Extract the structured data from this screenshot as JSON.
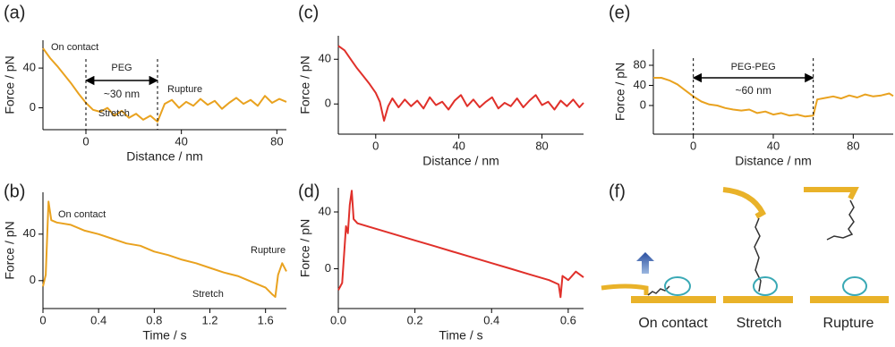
{
  "chart_data": [
    {
      "type": "line",
      "panel_label": "(a)",
      "x_label": "Distance / nm",
      "y_label": "Force / pN",
      "color": "#e9a21f",
      "xlim": [
        -18,
        84
      ],
      "ylim": [
        -22,
        68
      ],
      "xticks": [
        0,
        40,
        80
      ],
      "yticks": [
        0,
        40
      ],
      "x": [
        -18,
        -15,
        -12,
        -9,
        -6,
        -3,
        0,
        3,
        6,
        9,
        12,
        15,
        18,
        21,
        24,
        27,
        30,
        33,
        36,
        39,
        42,
        45,
        48,
        51,
        54,
        57,
        60,
        63,
        66,
        69,
        72,
        75,
        78,
        81,
        84
      ],
      "values": [
        60,
        50,
        42,
        33,
        24,
        14,
        5,
        -2,
        -4,
        0,
        -8,
        -3,
        -10,
        -6,
        -12,
        -8,
        -14,
        4,
        8,
        0,
        6,
        2,
        9,
        3,
        7,
        -1,
        5,
        10,
        4,
        8,
        2,
        12,
        5,
        9,
        6
      ],
      "annotations": [
        "On contact",
        "Rupture",
        "Stretch"
      ],
      "span": {
        "start": 0,
        "end": 30,
        "label": "PEG",
        "length_label": "~30 nm"
      }
    },
    {
      "type": "line",
      "panel_label": "(b)",
      "x_label": "Time / s",
      "y_label": "Force / pN",
      "color": "#e9a21f",
      "xlim": [
        0,
        1.75
      ],
      "ylim": [
        -24,
        76
      ],
      "xticks": [
        0,
        0.4,
        0.8,
        1.2,
        1.6
      ],
      "yticks": [
        0,
        40
      ],
      "x": [
        0,
        0.02,
        0.04,
        0.06,
        0.1,
        0.2,
        0.3,
        0.4,
        0.5,
        0.6,
        0.7,
        0.8,
        0.9,
        1.0,
        1.1,
        1.2,
        1.3,
        1.4,
        1.5,
        1.6,
        1.65,
        1.67,
        1.69,
        1.72,
        1.75
      ],
      "values": [
        -5,
        5,
        68,
        52,
        50,
        48,
        43,
        40,
        36,
        32,
        30,
        25,
        22,
        18,
        15,
        11,
        7,
        4,
        -1,
        -6,
        -12,
        -14,
        5,
        15,
        8
      ],
      "annotations": [
        "On contact",
        "Rupture",
        "Stretch"
      ]
    },
    {
      "type": "line",
      "panel_label": "(c)",
      "x_label": "Distance / nm",
      "y_label": "Force / pN",
      "color": "#e0302a",
      "xlim": [
        -18,
        100
      ],
      "ylim": [
        -27,
        61
      ],
      "xticks": [
        0,
        40,
        80
      ],
      "yticks": [
        0,
        40
      ],
      "x": [
        -18,
        -15,
        -12,
        -9,
        -6,
        -3,
        0,
        2,
        4,
        6,
        8,
        11,
        14,
        17,
        20,
        23,
        26,
        29,
        32,
        35,
        38,
        41,
        44,
        47,
        50,
        53,
        56,
        59,
        62,
        65,
        68,
        71,
        74,
        77,
        80,
        83,
        86,
        89,
        92,
        95,
        98,
        100
      ],
      "values": [
        52,
        48,
        40,
        32,
        25,
        18,
        10,
        2,
        -15,
        -2,
        5,
        -3,
        4,
        -2,
        3,
        -4,
        6,
        -1,
        2,
        -5,
        3,
        8,
        -2,
        4,
        -3,
        2,
        6,
        -4,
        1,
        -2,
        5,
        -3,
        3,
        8,
        -1,
        2,
        -5,
        3,
        -2,
        4,
        -3,
        1
      ]
    },
    {
      "type": "line",
      "panel_label": "(d)",
      "x_label": "Time / s",
      "y_label": "Force / pN",
      "color": "#e0302a",
      "xlim": [
        0,
        0.64
      ],
      "ylim": [
        -28,
        57
      ],
      "xticks": [
        {
          "value": 0,
          "label": "0.0"
        },
        0.2,
        0.4,
        0.6
      ],
      "yticks": [
        0,
        40
      ],
      "x": [
        0,
        0.01,
        0.02,
        0.025,
        0.03,
        0.035,
        0.04,
        0.05,
        0.1,
        0.15,
        0.2,
        0.25,
        0.3,
        0.35,
        0.4,
        0.45,
        0.5,
        0.55,
        0.575,
        0.58,
        0.585,
        0.6,
        0.62,
        0.64
      ],
      "values": [
        -15,
        -10,
        30,
        25,
        45,
        55,
        35,
        32,
        28,
        24,
        20,
        16,
        12,
        8,
        4,
        0,
        -4,
        -8,
        -11,
        -20,
        -5,
        -8,
        -2,
        -6
      ]
    },
    {
      "type": "line",
      "panel_label": "(e)",
      "x_label": "Distance / nm",
      "y_label": "Force / pN",
      "color": "#e9a21f",
      "xlim": [
        -20,
        100
      ],
      "ylim": [
        -57,
        112
      ],
      "xticks": [
        0,
        40,
        80
      ],
      "yticks": [
        0,
        40,
        80
      ],
      "x": [
        -20,
        -16,
        -12,
        -8,
        -4,
        0,
        4,
        8,
        12,
        16,
        20,
        24,
        28,
        32,
        36,
        40,
        44,
        48,
        52,
        56,
        60,
        62,
        66,
        70,
        74,
        78,
        82,
        86,
        90,
        94,
        98,
        100
      ],
      "values": [
        55,
        55,
        50,
        42,
        30,
        18,
        8,
        2,
        0,
        -5,
        -8,
        -10,
        -8,
        -15,
        -12,
        -18,
        -15,
        -20,
        -18,
        -22,
        -20,
        12,
        15,
        18,
        14,
        20,
        16,
        22,
        18,
        20,
        24,
        19
      ],
      "span": {
        "start": 0,
        "end": 60,
        "label": "PEG-PEG",
        "length_label": "~60 nm"
      }
    }
  ],
  "diagram": {
    "panel_label": "(f)",
    "stages": [
      "On contact",
      "Stretch",
      "Rupture"
    ]
  }
}
